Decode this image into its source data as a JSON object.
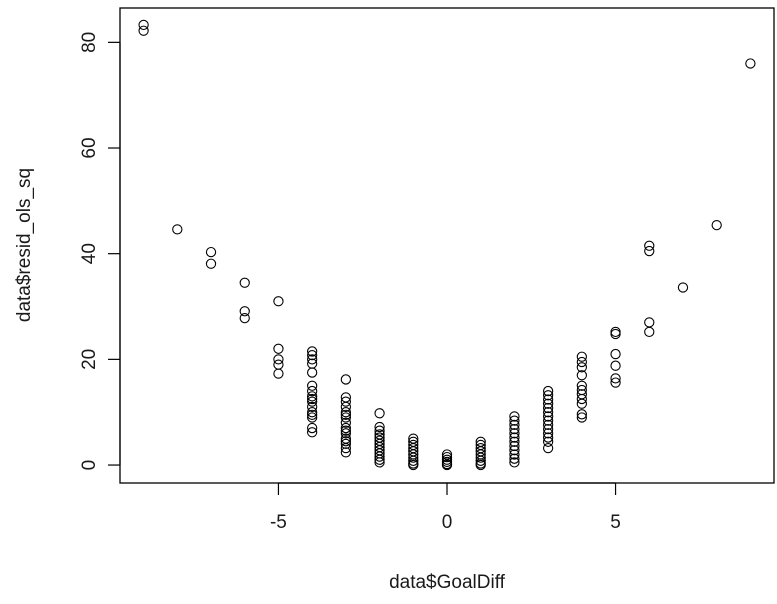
{
  "chart_data": {
    "type": "scatter",
    "title": "",
    "xlabel": "data$GoalDiff",
    "ylabel": "data$resid_ols_sq",
    "xlim": [
      -9.7,
      9.7
    ],
    "ylim": [
      -3.4,
      86.5
    ],
    "xticks": [
      -5,
      0,
      5
    ],
    "yticks": [
      0,
      20,
      40,
      60,
      80
    ],
    "xtick_labels": [
      "-5",
      "0",
      "5"
    ],
    "ytick_labels": [
      "0",
      "20",
      "40",
      "60",
      "80"
    ],
    "grid": false,
    "legend": "none",
    "marker": "open-circle",
    "color": "#000000",
    "points": [
      {
        "x": -9,
        "y": 83.3
      },
      {
        "x": -9,
        "y": 82.2
      },
      {
        "x": -8,
        "y": 44.6
      },
      {
        "x": -7,
        "y": 40.3
      },
      {
        "x": -7,
        "y": 38.1
      },
      {
        "x": -6,
        "y": 34.5
      },
      {
        "x": -6,
        "y": 29.1
      },
      {
        "x": -6,
        "y": 27.8
      },
      {
        "x": -5,
        "y": 31.0
      },
      {
        "x": -5,
        "y": 22.0
      },
      {
        "x": -5,
        "y": 20.0
      },
      {
        "x": -5,
        "y": 19.0
      },
      {
        "x": -5,
        "y": 17.3
      },
      {
        "x": -4,
        "y": 21.5
      },
      {
        "x": -4,
        "y": 20.8
      },
      {
        "x": -4,
        "y": 20.0
      },
      {
        "x": -4,
        "y": 19.2
      },
      {
        "x": -4,
        "y": 17.5
      },
      {
        "x": -4,
        "y": 15.0
      },
      {
        "x": -4,
        "y": 14.0
      },
      {
        "x": -4,
        "y": 13.0
      },
      {
        "x": -4,
        "y": 12.5
      },
      {
        "x": -4,
        "y": 12.0
      },
      {
        "x": -4,
        "y": 11.0
      },
      {
        "x": -4,
        "y": 10.0
      },
      {
        "x": -4,
        "y": 9.5
      },
      {
        "x": -4,
        "y": 9.0
      },
      {
        "x": -4,
        "y": 7.0
      },
      {
        "x": -4,
        "y": 6.2
      },
      {
        "x": -3,
        "y": 16.2
      },
      {
        "x": -3,
        "y": 12.8
      },
      {
        "x": -3,
        "y": 12.0
      },
      {
        "x": -3,
        "y": 11.0
      },
      {
        "x": -3,
        "y": 10.0
      },
      {
        "x": -3,
        "y": 9.5
      },
      {
        "x": -3,
        "y": 9.0
      },
      {
        "x": -3,
        "y": 8.0
      },
      {
        "x": -3,
        "y": 7.0
      },
      {
        "x": -3,
        "y": 6.5
      },
      {
        "x": -3,
        "y": 6.0
      },
      {
        "x": -3,
        "y": 5.0
      },
      {
        "x": -3,
        "y": 4.5
      },
      {
        "x": -3,
        "y": 4.0
      },
      {
        "x": -3,
        "y": 3.2
      },
      {
        "x": -3,
        "y": 2.4
      },
      {
        "x": -2,
        "y": 9.8
      },
      {
        "x": -2,
        "y": 7.2
      },
      {
        "x": -2,
        "y": 6.5
      },
      {
        "x": -2,
        "y": 5.8
      },
      {
        "x": -2,
        "y": 5.2
      },
      {
        "x": -2,
        "y": 4.6
      },
      {
        "x": -2,
        "y": 4.0
      },
      {
        "x": -2,
        "y": 3.4
      },
      {
        "x": -2,
        "y": 2.8
      },
      {
        "x": -2,
        "y": 2.2
      },
      {
        "x": -2,
        "y": 1.6
      },
      {
        "x": -2,
        "y": 1.0
      },
      {
        "x": -2,
        "y": 0.5
      },
      {
        "x": -1,
        "y": 5.0
      },
      {
        "x": -1,
        "y": 4.4
      },
      {
        "x": -1,
        "y": 3.8
      },
      {
        "x": -1,
        "y": 3.2
      },
      {
        "x": -1,
        "y": 2.6
      },
      {
        "x": -1,
        "y": 2.0
      },
      {
        "x": -1,
        "y": 1.4
      },
      {
        "x": -1,
        "y": 0.8
      },
      {
        "x": -1,
        "y": 0.3
      },
      {
        "x": -1,
        "y": 0.0
      },
      {
        "x": 0,
        "y": 2.0
      },
      {
        "x": 0,
        "y": 1.5
      },
      {
        "x": 0,
        "y": 1.0
      },
      {
        "x": 0,
        "y": 0.6
      },
      {
        "x": 0,
        "y": 0.2
      },
      {
        "x": 0,
        "y": 0.0
      },
      {
        "x": 1,
        "y": 4.4
      },
      {
        "x": 1,
        "y": 3.8
      },
      {
        "x": 1,
        "y": 3.2
      },
      {
        "x": 1,
        "y": 2.6
      },
      {
        "x": 1,
        "y": 2.0
      },
      {
        "x": 1,
        "y": 1.4
      },
      {
        "x": 1,
        "y": 0.8
      },
      {
        "x": 1,
        "y": 0.3
      },
      {
        "x": 1,
        "y": 0.0
      },
      {
        "x": 2,
        "y": 9.2
      },
      {
        "x": 2,
        "y": 8.4
      },
      {
        "x": 2,
        "y": 7.6
      },
      {
        "x": 2,
        "y": 6.8
      },
      {
        "x": 2,
        "y": 6.0
      },
      {
        "x": 2,
        "y": 5.2
      },
      {
        "x": 2,
        "y": 4.4
      },
      {
        "x": 2,
        "y": 3.6
      },
      {
        "x": 2,
        "y": 2.8
      },
      {
        "x": 2,
        "y": 2.0
      },
      {
        "x": 2,
        "y": 1.2
      },
      {
        "x": 2,
        "y": 0.5
      },
      {
        "x": 3,
        "y": 14.0
      },
      {
        "x": 3,
        "y": 13.2
      },
      {
        "x": 3,
        "y": 12.4
      },
      {
        "x": 3,
        "y": 11.6
      },
      {
        "x": 3,
        "y": 10.8
      },
      {
        "x": 3,
        "y": 10.0
      },
      {
        "x": 3,
        "y": 9.2
      },
      {
        "x": 3,
        "y": 8.4
      },
      {
        "x": 3,
        "y": 7.6
      },
      {
        "x": 3,
        "y": 6.8
      },
      {
        "x": 3,
        "y": 6.0
      },
      {
        "x": 3,
        "y": 5.2
      },
      {
        "x": 3,
        "y": 4.4
      },
      {
        "x": 3,
        "y": 3.2
      },
      {
        "x": 4,
        "y": 20.5
      },
      {
        "x": 4,
        "y": 19.5
      },
      {
        "x": 4,
        "y": 18.5
      },
      {
        "x": 4,
        "y": 17.0
      },
      {
        "x": 4,
        "y": 15.0
      },
      {
        "x": 4,
        "y": 14.2
      },
      {
        "x": 4,
        "y": 13.4
      },
      {
        "x": 4,
        "y": 12.5
      },
      {
        "x": 4,
        "y": 11.6
      },
      {
        "x": 4,
        "y": 9.6
      },
      {
        "x": 4,
        "y": 9.0
      },
      {
        "x": 5,
        "y": 25.2
      },
      {
        "x": 5,
        "y": 24.8
      },
      {
        "x": 5,
        "y": 21.0
      },
      {
        "x": 5,
        "y": 18.8
      },
      {
        "x": 5,
        "y": 16.4
      },
      {
        "x": 5,
        "y": 15.6
      },
      {
        "x": 6,
        "y": 41.5
      },
      {
        "x": 6,
        "y": 40.5
      },
      {
        "x": 6,
        "y": 27.0
      },
      {
        "x": 6,
        "y": 25.2
      },
      {
        "x": 7,
        "y": 33.6
      },
      {
        "x": 8,
        "y": 45.4
      },
      {
        "x": 9,
        "y": 76.0
      }
    ]
  }
}
